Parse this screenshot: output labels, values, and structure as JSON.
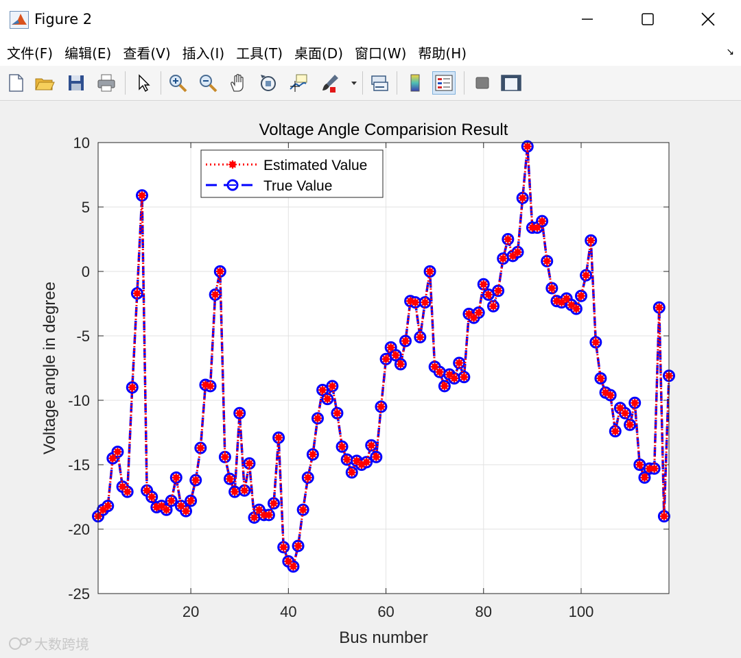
{
  "window": {
    "title": "Figure 2",
    "controls": {
      "minimize": "minimize-icon",
      "maximize": "maximize-icon",
      "close": "close-icon"
    }
  },
  "menubar": {
    "items": [
      "文件(F)",
      "编辑(E)",
      "查看(V)",
      "插入(I)",
      "工具(T)",
      "桌面(D)",
      "窗口(W)",
      "帮助(H)"
    ],
    "dock_arrow": "↘"
  },
  "toolbar": {
    "buttons": [
      "new-figure-icon",
      "open-icon",
      "save-icon",
      "print-icon",
      "pointer-icon",
      "zoom-in-icon",
      "zoom-out-icon",
      "pan-icon",
      "rotate-icon",
      "data-cursor-icon",
      "brush-icon",
      "link-icon",
      "colorbar-icon",
      "legend-icon",
      "hide-plot-tools-icon",
      "show-plot-tools-icon"
    ]
  },
  "watermark": {
    "text": "大数跨境"
  },
  "chart_data": {
    "type": "line",
    "title": "Voltage Angle Comparision Result",
    "xlabel": "Bus number",
    "ylabel": "Voltage angle in degree",
    "xlim": [
      1,
      118
    ],
    "ylim": [
      -25,
      10
    ],
    "xticks": [
      20,
      40,
      60,
      80,
      100
    ],
    "yticks": [
      -25,
      -20,
      -15,
      -10,
      -5,
      0,
      5,
      10
    ],
    "grid": true,
    "legend_position": "top-left",
    "x": [
      1,
      2,
      3,
      4,
      5,
      6,
      7,
      8,
      9,
      10,
      11,
      12,
      13,
      14,
      15,
      16,
      17,
      18,
      19,
      20,
      21,
      22,
      23,
      24,
      25,
      26,
      27,
      28,
      29,
      30,
      31,
      32,
      33,
      34,
      35,
      36,
      37,
      38,
      39,
      40,
      41,
      42,
      43,
      44,
      45,
      46,
      47,
      48,
      49,
      50,
      51,
      52,
      53,
      54,
      55,
      56,
      57,
      58,
      59,
      60,
      61,
      62,
      63,
      64,
      65,
      66,
      67,
      68,
      69,
      70,
      71,
      72,
      73,
      74,
      75,
      76,
      77,
      78,
      79,
      80,
      81,
      82,
      83,
      84,
      85,
      86,
      87,
      88,
      89,
      90,
      91,
      92,
      93,
      94,
      95,
      96,
      97,
      98,
      99,
      100,
      101,
      102,
      103,
      104,
      105,
      106,
      107,
      108,
      109,
      110,
      111,
      112,
      113,
      114,
      115,
      116,
      117,
      118
    ],
    "series": [
      {
        "name": "Estimated Value",
        "color": "#ff0000",
        "style": "dotted-asterisk",
        "values": [
          -19.0,
          -18.5,
          -18.2,
          -14.5,
          -14.0,
          -16.7,
          -17.1,
          -9.0,
          -1.7,
          5.9,
          -17.0,
          -17.5,
          -18.3,
          -18.2,
          -18.5,
          -17.8,
          -16.0,
          -18.2,
          -18.6,
          -17.8,
          -16.2,
          -13.7,
          -8.8,
          -8.9,
          -1.8,
          0.0,
          -14.4,
          -16.1,
          -17.1,
          -11.0,
          -17.0,
          -14.9,
          -19.1,
          -18.5,
          -18.9,
          -18.9,
          -18.0,
          -12.9,
          -21.4,
          -22.5,
          -22.9,
          -21.3,
          -18.5,
          -16.0,
          -14.2,
          -11.4,
          -9.2,
          -9.9,
          -8.9,
          -11.0,
          -13.6,
          -14.6,
          -15.6,
          -14.7,
          -15.0,
          -14.8,
          -13.5,
          -14.4,
          -10.5,
          -6.8,
          -5.9,
          -6.5,
          -7.2,
          -5.4,
          -2.3,
          -2.4,
          -5.1,
          -2.4,
          0.0,
          -7.4,
          -7.8,
          -8.9,
          -8.0,
          -8.3,
          -7.1,
          -8.2,
          -3.3,
          -3.6,
          -3.2,
          -1.0,
          -1.8,
          -2.7,
          -1.5,
          1.0,
          2.5,
          1.2,
          1.5,
          5.7,
          9.7,
          3.4,
          3.4,
          3.9,
          0.8,
          -1.3,
          -2.3,
          -2.4,
          -2.1,
          -2.6,
          -2.9,
          -1.9,
          -0.3,
          2.4,
          -5.5,
          -8.3,
          -9.4,
          -9.6,
          -12.4,
          -10.6,
          -11.0,
          -11.9,
          -10.2,
          -15.0,
          -16.0,
          -15.3,
          -15.3,
          -2.8,
          -19.0,
          -8.1
        ]
      },
      {
        "name": "True Value",
        "color": "#0000ff",
        "style": "dashed-circle",
        "values": [
          -19.0,
          -18.5,
          -18.2,
          -14.5,
          -14.0,
          -16.7,
          -17.1,
          -9.0,
          -1.7,
          5.9,
          -17.0,
          -17.5,
          -18.3,
          -18.2,
          -18.5,
          -17.8,
          -16.0,
          -18.2,
          -18.6,
          -17.8,
          -16.2,
          -13.7,
          -8.8,
          -8.9,
          -1.8,
          0.0,
          -14.4,
          -16.1,
          -17.1,
          -11.0,
          -17.0,
          -14.9,
          -19.1,
          -18.5,
          -18.9,
          -18.9,
          -18.0,
          -12.9,
          -21.4,
          -22.5,
          -22.9,
          -21.3,
          -18.5,
          -16.0,
          -14.2,
          -11.4,
          -9.2,
          -9.9,
          -8.9,
          -11.0,
          -13.6,
          -14.6,
          -15.6,
          -14.7,
          -15.0,
          -14.8,
          -13.5,
          -14.4,
          -10.5,
          -6.8,
          -5.9,
          -6.5,
          -7.2,
          -5.4,
          -2.3,
          -2.4,
          -5.1,
          -2.4,
          0.0,
          -7.4,
          -7.8,
          -8.9,
          -8.0,
          -8.3,
          -7.1,
          -8.2,
          -3.3,
          -3.6,
          -3.2,
          -1.0,
          -1.8,
          -2.7,
          -1.5,
          1.0,
          2.5,
          1.2,
          1.5,
          5.7,
          9.7,
          3.4,
          3.4,
          3.9,
          0.8,
          -1.3,
          -2.3,
          -2.4,
          -2.1,
          -2.6,
          -2.9,
          -1.9,
          -0.3,
          2.4,
          -5.5,
          -8.3,
          -9.4,
          -9.6,
          -12.4,
          -10.6,
          -11.0,
          -11.9,
          -10.2,
          -15.0,
          -16.0,
          -15.3,
          -15.3,
          -2.8,
          -19.0,
          -8.1
        ]
      }
    ]
  }
}
